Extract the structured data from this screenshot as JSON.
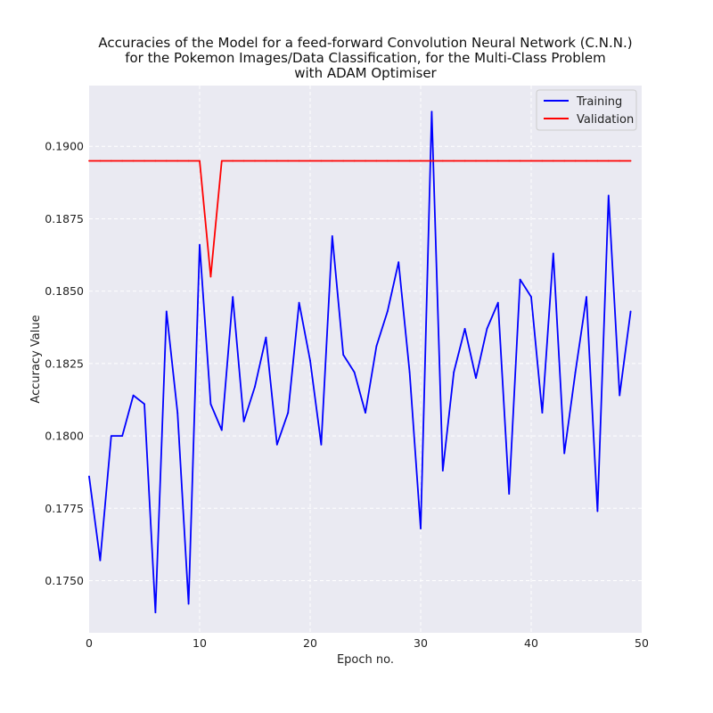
{
  "chart_data": {
    "type": "line",
    "title_lines": [
      "Accuracies of the Model for a feed-forward Convolution Neural Network (C.N.N.)",
      "for the Pokemon Images/Data Classification, for the Multi-Class Problem",
      "with ADAM Optimiser"
    ],
    "xlabel": "Epoch no.",
    "ylabel": "Accuracy Value",
    "xlim": [
      0,
      50
    ],
    "ylim": [
      0.1732,
      0.1921
    ],
    "xticks": [
      0,
      10,
      20,
      30,
      40,
      50
    ],
    "yticks": [
      0.175,
      0.1775,
      0.18,
      0.1825,
      0.185,
      0.1875,
      0.19
    ],
    "ytick_labels": [
      "0.1750",
      "0.1775",
      "0.1800",
      "0.1825",
      "0.1850",
      "0.1875",
      "0.1900"
    ],
    "grid": true,
    "legend_position": "top-right",
    "x": [
      0,
      1,
      2,
      3,
      4,
      5,
      6,
      7,
      8,
      9,
      10,
      11,
      12,
      13,
      14,
      15,
      16,
      17,
      18,
      19,
      20,
      21,
      22,
      23,
      24,
      25,
      26,
      27,
      28,
      29,
      30,
      31,
      32,
      33,
      34,
      35,
      36,
      37,
      38,
      39,
      40,
      41,
      42,
      43,
      44,
      45,
      46,
      47,
      48,
      49
    ],
    "series": [
      {
        "name": "Training",
        "color": "#0000ff",
        "values": [
          0.1786,
          0.1757,
          0.18,
          0.18,
          0.1814,
          0.1811,
          0.1739,
          0.1843,
          0.1808,
          0.1742,
          0.1866,
          0.1811,
          0.1802,
          0.1848,
          0.1805,
          0.1817,
          0.1834,
          0.1797,
          0.1808,
          0.1846,
          0.1826,
          0.1797,
          0.1869,
          0.1828,
          0.1822,
          0.1808,
          0.1831,
          0.1843,
          0.186,
          0.1822,
          0.1768,
          0.1912,
          0.1788,
          0.1822,
          0.1837,
          0.182,
          0.1837,
          0.1846,
          0.178,
          0.1854,
          0.1848,
          0.1808,
          0.1863,
          0.1794,
          0.1822,
          0.1848,
          0.1774,
          0.1883,
          0.1814,
          0.1843
        ]
      },
      {
        "name": "Validation",
        "color": "#ff0000",
        "values": [
          0.1895,
          0.1895,
          0.1895,
          0.1895,
          0.1895,
          0.1895,
          0.1895,
          0.1895,
          0.1895,
          0.1895,
          0.1895,
          0.1855,
          0.1895,
          0.1895,
          0.1895,
          0.1895,
          0.1895,
          0.1895,
          0.1895,
          0.1895,
          0.1895,
          0.1895,
          0.1895,
          0.1895,
          0.1895,
          0.1895,
          0.1895,
          0.1895,
          0.1895,
          0.1895,
          0.1895,
          0.1895,
          0.1895,
          0.1895,
          0.1895,
          0.1895,
          0.1895,
          0.1895,
          0.1895,
          0.1895,
          0.1895,
          0.1895,
          0.1895,
          0.1895,
          0.1895,
          0.1895,
          0.1895,
          0.1895,
          0.1895,
          0.1895
        ]
      }
    ]
  },
  "colors": {
    "plot_background": "#eaeaf2",
    "grid": "#ffffff"
  }
}
